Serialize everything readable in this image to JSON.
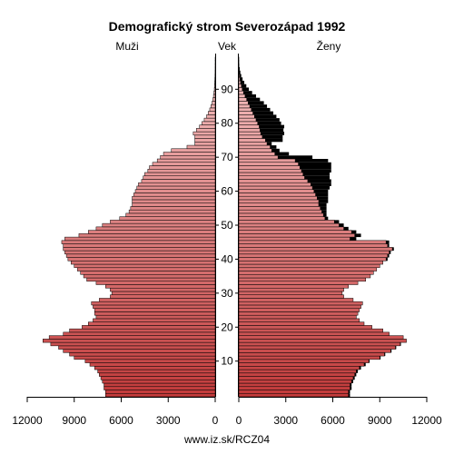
{
  "chart_data": {
    "type": "bar",
    "title": "Demografický strom Severozápad 1992",
    "left_label": "Muži",
    "center_label": "Vek",
    "right_label": "Ženy",
    "footer": "www.iz.sk/RCZ04",
    "x_ticks_left": [
      "12000",
      "9000",
      "6000",
      "3000",
      "0"
    ],
    "x_ticks_right": [
      "0",
      "3000",
      "6000",
      "9000",
      "12000"
    ],
    "age_ticks": [
      "10",
      "20",
      "30",
      "40",
      "50",
      "60",
      "70",
      "80",
      "90"
    ],
    "xlim": [
      0,
      12000
    ],
    "ages": [
      0,
      1,
      2,
      3,
      4,
      5,
      6,
      7,
      8,
      9,
      10,
      11,
      12,
      13,
      14,
      15,
      16,
      17,
      18,
      19,
      20,
      21,
      22,
      23,
      24,
      25,
      26,
      27,
      28,
      29,
      30,
      31,
      32,
      33,
      34,
      35,
      36,
      37,
      38,
      39,
      40,
      41,
      42,
      43,
      44,
      45,
      46,
      47,
      48,
      49,
      50,
      51,
      52,
      53,
      54,
      55,
      56,
      57,
      58,
      59,
      60,
      61,
      62,
      63,
      64,
      65,
      66,
      67,
      68,
      69,
      70,
      71,
      72,
      73,
      74,
      75,
      76,
      77,
      78,
      79,
      80,
      81,
      82,
      83,
      84,
      85,
      86,
      87,
      88,
      89,
      90,
      91,
      92,
      93,
      94,
      95,
      96,
      97,
      98,
      99,
      100
    ],
    "male": [
      7000,
      7000,
      7100,
      7100,
      7200,
      7300,
      7400,
      7500,
      7700,
      8000,
      8300,
      9000,
      9300,
      9700,
      10000,
      10500,
      11000,
      10600,
      9700,
      9300,
      8500,
      8100,
      7800,
      7600,
      7700,
      7700,
      7800,
      7900,
      7400,
      6700,
      6600,
      6700,
      7000,
      7600,
      8200,
      8400,
      8600,
      8800,
      9000,
      9200,
      9400,
      9500,
      9600,
      9700,
      9700,
      9800,
      9600,
      8700,
      8100,
      7600,
      7200,
      6700,
      6100,
      5700,
      5500,
      5400,
      5300,
      5300,
      5300,
      5200,
      5100,
      5000,
      4900,
      4700,
      4600,
      4500,
      4300,
      4200,
      4000,
      3700,
      3500,
      3300,
      2800,
      1800,
      1300,
      1300,
      1300,
      1400,
      1200,
      1000,
      850,
      700,
      550,
      450,
      350,
      270,
      200,
      150,
      110,
      80,
      55,
      40,
      28,
      20,
      12,
      8,
      5,
      3,
      2,
      1,
      0
    ],
    "female": [
      7000,
      7000,
      7100,
      7100,
      7200,
      7300,
      7400,
      7500,
      7700,
      8000,
      8300,
      9000,
      9300,
      9700,
      10000,
      10300,
      10700,
      10500,
      9600,
      9200,
      8500,
      8000,
      7700,
      7500,
      7600,
      7700,
      7800,
      7900,
      7300,
      6700,
      6600,
      6700,
      7000,
      7600,
      8100,
      8400,
      8600,
      8800,
      9000,
      9200,
      9400,
      9500,
      9600,
      9800,
      9500,
      9400,
      7100,
      7400,
      7200,
      6700,
      6400,
      6100,
      5500,
      5400,
      5300,
      5200,
      5100,
      5100,
      5000,
      4900,
      4800,
      4700,
      4600,
      4400,
      4200,
      4100,
      4000,
      3900,
      3800,
      3600,
      2500,
      2300,
      2100,
      2000,
      1800,
      1700,
      1500,
      1400,
      1350,
      1300,
      1200,
      1100,
      1000,
      900,
      800,
      700,
      600,
      500,
      400,
      300,
      220,
      160,
      110,
      70,
      45,
      28,
      17,
      10,
      5,
      3,
      0
    ],
    "female_excess": [
      100,
      100,
      100,
      100,
      100,
      100,
      100,
      100,
      100,
      100,
      50,
      50,
      50,
      50,
      50,
      50,
      0,
      0,
      0,
      0,
      0,
      0,
      0,
      0,
      0,
      0,
      0,
      0,
      0,
      0,
      0,
      0,
      0,
      0,
      0,
      0,
      0,
      0,
      0,
      0,
      100,
      100,
      100,
      100,
      100,
      200,
      400,
      400,
      300,
      300,
      300,
      300,
      200,
      200,
      300,
      400,
      500,
      600,
      700,
      800,
      900,
      1100,
      1300,
      1500,
      1600,
      1700,
      1900,
      2000,
      2100,
      2100,
      2200,
      900,
      500,
      400,
      300,
      1100,
      1300,
      1500,
      1500,
      1600,
      1500,
      1500,
      1400,
      1300,
      1200,
      1100,
      1000,
      850,
      700,
      550,
      420,
      320,
      240,
      170,
      110,
      70,
      40,
      20,
      10,
      5,
      0
    ],
    "colors": {
      "bar_light": "#f6c6c6",
      "bar_dark": "#c23b3b",
      "excess": "#000000",
      "outline": "#000000"
    }
  }
}
